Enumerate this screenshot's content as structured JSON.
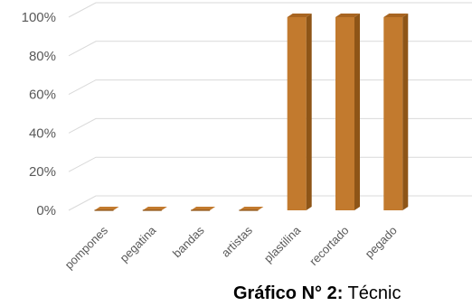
{
  "chart_data": {
    "type": "bar",
    "categories": [
      "pompones",
      "pegatina",
      "bandas",
      "artistas",
      "plastilina",
      "recortado",
      "pegado"
    ],
    "values": [
      0,
      0,
      0,
      0,
      100,
      100,
      100
    ],
    "y_tick_labels": [
      "0%",
      "20%",
      "40%",
      "60%",
      "80%",
      "100%"
    ],
    "ylim": [
      0,
      100
    ],
    "grid": true,
    "legend": "none",
    "style": "3d-column"
  },
  "caption": {
    "prefix": "Gráfico N° 2:",
    "text": " Técnic"
  },
  "colors": {
    "bar_front": "#C27A2E",
    "bar_side": "#8E5517",
    "bar_top": "#A86521",
    "grid": "#D9D9D9",
    "tick_text": "#595959"
  }
}
